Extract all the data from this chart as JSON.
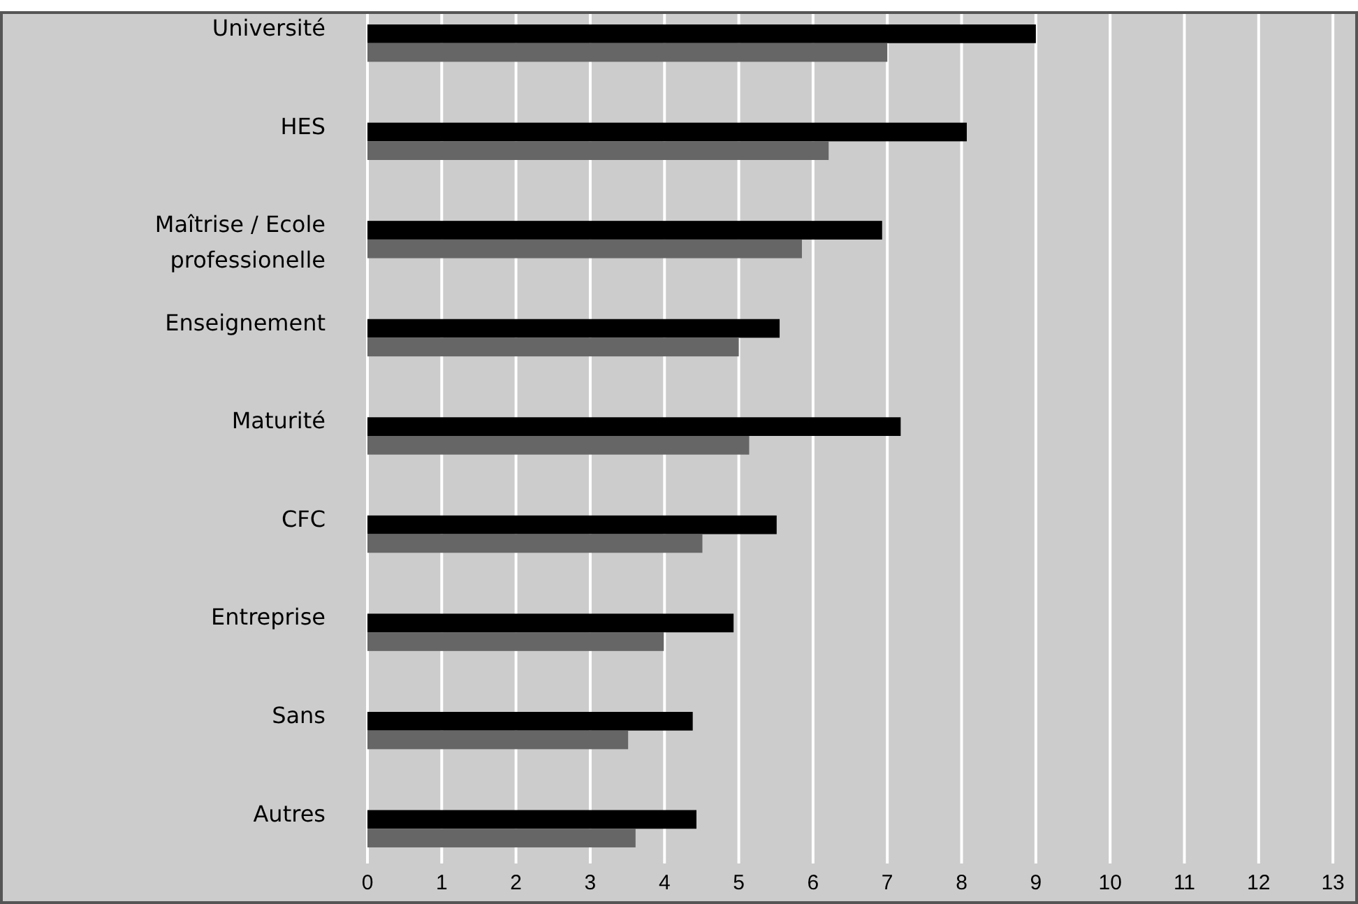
{
  "chart_data": {
    "type": "bar",
    "orientation": "horizontal",
    "categories": [
      "Université",
      "HES",
      "Maîtrise / Ecole professionelle",
      "Enseignement",
      "Maturité",
      "CFC",
      "Entreprise",
      "Sans",
      "Autres"
    ],
    "series": [
      {
        "color": "#000000",
        "values": [
          9.0,
          8.07,
          6.93,
          5.55,
          7.18,
          5.51,
          4.93,
          4.38,
          4.43
        ]
      },
      {
        "color": "#666666",
        "values": [
          7.0,
          6.21,
          5.85,
          5.0,
          5.14,
          4.51,
          3.99,
          3.51,
          3.61
        ]
      }
    ],
    "xlim": [
      0,
      13.3
    ],
    "xticks": [
      0,
      1,
      2,
      3,
      4,
      5,
      6,
      7,
      8,
      9,
      10,
      11,
      12,
      13
    ],
    "grid": "x"
  }
}
